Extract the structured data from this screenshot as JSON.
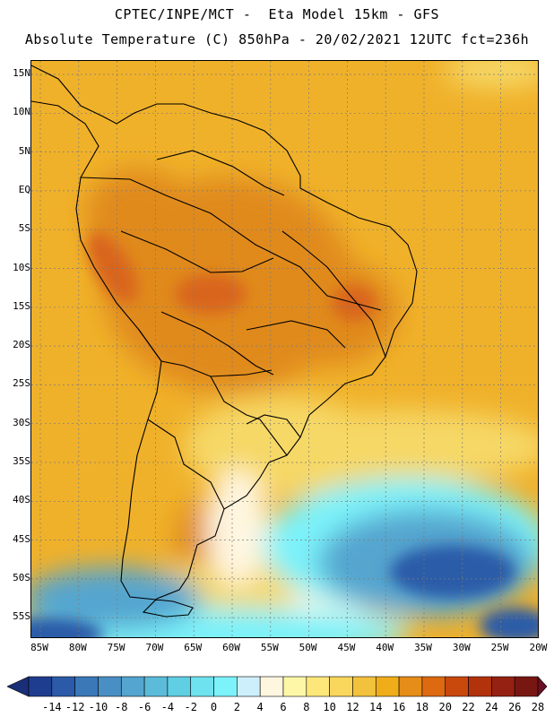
{
  "title_line1": "CPTEC/INPE/MCT -  Eta Model 15km - GFS",
  "title_line2": "Absolute Temperature (C) 850hPa - 20/02/2021 12UTC fct=236h",
  "lat_labels": [
    "15N",
    "10N",
    "5N",
    "EQ",
    "5S",
    "10S",
    "15S",
    "20S",
    "25S",
    "30S",
    "35S",
    "40S",
    "45S",
    "50S",
    "55S"
  ],
  "lon_labels": [
    "85W",
    "80W",
    "75W",
    "70W",
    "65W",
    "60W",
    "55W",
    "50W",
    "45W",
    "40W",
    "35W",
    "30W",
    "25W",
    "20W"
  ],
  "colorbar": {
    "labels": [
      "-14",
      "-12",
      "-10",
      "-8",
      "-6",
      "-4",
      "-2",
      "0",
      "2",
      "4",
      "6",
      "8",
      "10",
      "12",
      "14",
      "16",
      "18",
      "20",
      "22",
      "24",
      "26",
      "28"
    ],
    "colors": [
      "#1f3d8f",
      "#2b5ba8",
      "#3a78b8",
      "#4a8fc4",
      "#54a5cf",
      "#5bbbd9",
      "#60cfe3",
      "#6ee3ef",
      "#7cf2fa",
      "#cdeffb",
      "#fff6e0",
      "#fff7a8",
      "#fde77a",
      "#f9d65c",
      "#f2c23d",
      "#f0ad1a",
      "#e68d19",
      "#dd6a10",
      "#c9480c",
      "#b1320b",
      "#952112",
      "#781712"
    ],
    "low_arrow_color": "#1a2f77",
    "high_arrow_color": "#6a0f22"
  },
  "map_colors": {
    "ocean_warm": "#f0b12a",
    "land_hot": "#e08a1c",
    "hotspot": "#d9651a",
    "mild": "#f6d866",
    "pale": "#fff6e0",
    "cool": "#7cf2fa",
    "cold": "#54a5cf",
    "coldest": "#2b5ba8",
    "gridline": "#7a7a7a",
    "coast": "#000000"
  }
}
